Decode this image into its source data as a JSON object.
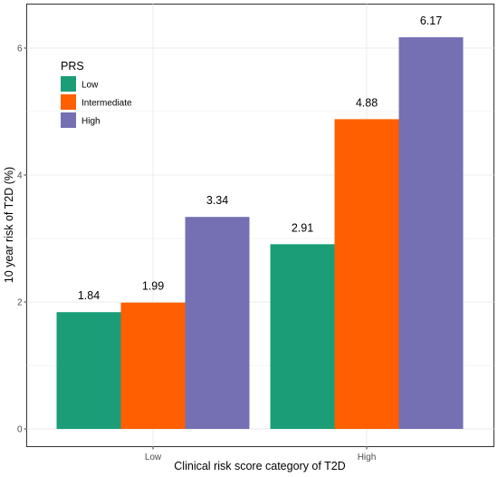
{
  "chart_data": {
    "type": "bar",
    "xlabel": "Clinical risk score category of T2D",
    "ylabel": "10 year risk of T2D (%)",
    "categories": [
      "Low",
      "High"
    ],
    "ylim": [
      0,
      6.5
    ],
    "yticks": [
      0,
      2,
      4,
      6
    ],
    "grid": true,
    "legend": {
      "title": "PRS",
      "position": "top-left"
    },
    "series": [
      {
        "name": "Low",
        "color": "#1b9e77",
        "values": [
          1.84,
          2.91
        ],
        "labels": [
          "1.84",
          "2.91"
        ]
      },
      {
        "name": "Intermediate",
        "color": "#ff5f00",
        "values": [
          1.99,
          4.88
        ],
        "labels": [
          "1.99",
          "4.88"
        ]
      },
      {
        "name": "High",
        "color": "#7570b3",
        "values": [
          3.34,
          6.17
        ],
        "labels": [
          "3.34",
          "6.17"
        ]
      }
    ]
  }
}
